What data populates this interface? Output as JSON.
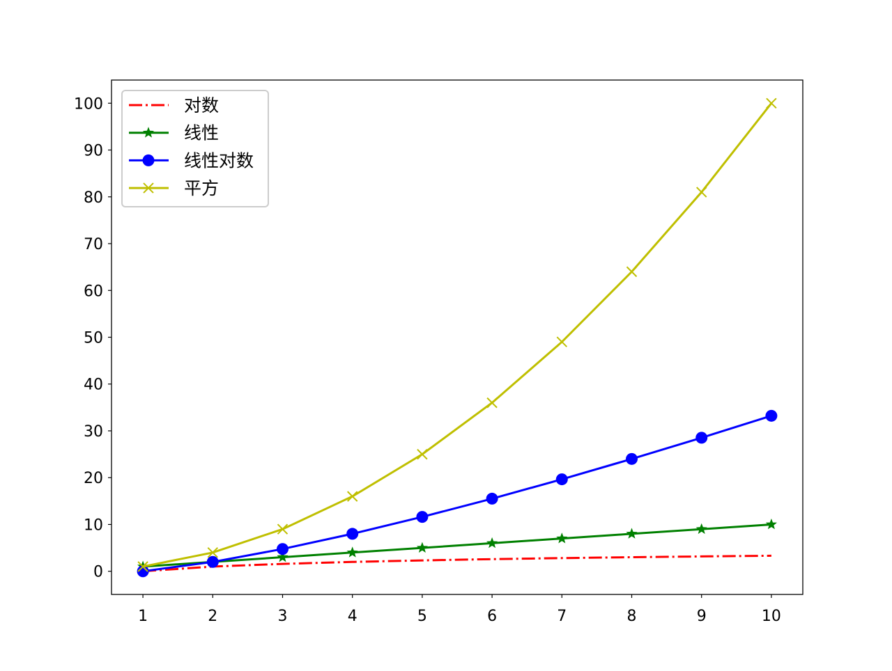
{
  "chart_data": {
    "type": "line",
    "title": "",
    "xlabel": "",
    "ylabel": "",
    "x": [
      1,
      2,
      3,
      4,
      5,
      6,
      7,
      8,
      9,
      10
    ],
    "xlim": [
      0.55,
      10.45
    ],
    "ylim": [
      -4.95,
      104.95
    ],
    "xticks": [
      1,
      2,
      3,
      4,
      5,
      6,
      7,
      8,
      9,
      10
    ],
    "yticks": [
      0,
      10,
      20,
      30,
      40,
      50,
      60,
      70,
      80,
      90,
      100
    ],
    "grid": false,
    "legend_placement": "upper-left",
    "series": [
      {
        "name": "对数",
        "color": "#ff0000",
        "linestyle": "dashdot",
        "marker": "none",
        "values": [
          0,
          1,
          1.585,
          2,
          2.322,
          2.585,
          2.807,
          3,
          3.17,
          3.322
        ]
      },
      {
        "name": "线性",
        "color": "#008000",
        "linestyle": "solid",
        "marker": "star",
        "values": [
          1,
          2,
          3,
          4,
          5,
          6,
          7,
          8,
          9,
          10
        ]
      },
      {
        "name": "线性对数",
        "color": "#0000ff",
        "linestyle": "solid",
        "marker": "circle",
        "values": [
          0,
          2,
          4.755,
          8,
          11.61,
          15.51,
          19.65,
          24,
          28.53,
          33.22
        ]
      },
      {
        "name": "平方",
        "color": "#bfbf00",
        "linestyle": "solid",
        "marker": "x",
        "values": [
          1,
          4,
          9,
          16,
          25,
          36,
          49,
          64,
          81,
          100
        ]
      }
    ]
  }
}
